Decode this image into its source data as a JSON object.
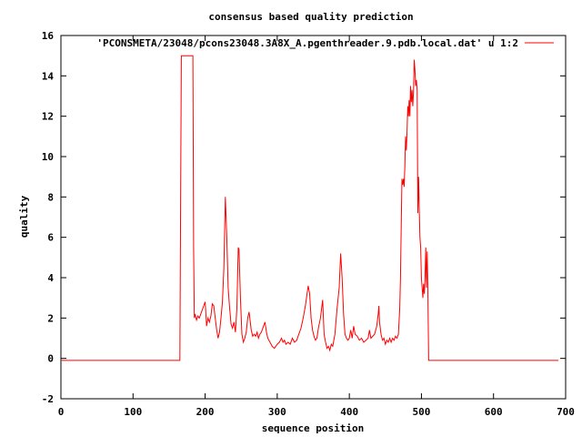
{
  "chart_data": {
    "type": "line",
    "title": "consensus based quality prediction",
    "xlabel": "sequence position",
    "ylabel": "quality",
    "xlim": [
      0,
      700
    ],
    "ylim": [
      -2,
      16
    ],
    "xticks": [
      0,
      100,
      200,
      300,
      400,
      500,
      600,
      700
    ],
    "yticks": [
      -2,
      0,
      2,
      4,
      6,
      8,
      10,
      12,
      14,
      16
    ],
    "grid": false,
    "legend_position": "top-right",
    "series": [
      {
        "name": "'PCONSMETA/23048/pcons23048.3A8X_A.pgenthreader.9.pdb.local.dat' u 1:2",
        "color": "#ff0000",
        "x": [
          1,
          165,
          166,
          167,
          183,
          184,
          185,
          186,
          188,
          190,
          192,
          195,
          198,
          200,
          202,
          204,
          206,
          208,
          210,
          212,
          214,
          216,
          218,
          220,
          222,
          224,
          226,
          228,
          230,
          232,
          234,
          236,
          238,
          240,
          242,
          244,
          246,
          247,
          249,
          251,
          253,
          255,
          257,
          259,
          261,
          264,
          266,
          268,
          270,
          272,
          274,
          276,
          278,
          280,
          283,
          285,
          287,
          290,
          293,
          296,
          300,
          303,
          306,
          308,
          310,
          312,
          315,
          318,
          321,
          324,
          327,
          330,
          333,
          336,
          339,
          343,
          345,
          347,
          349,
          351,
          353,
          355,
          357,
          360,
          363,
          365,
          367,
          369,
          371,
          373,
          375,
          377,
          380,
          383,
          386,
          388,
          390,
          392,
          394,
          396,
          398,
          400,
          402,
          404,
          406,
          408,
          411,
          414,
          417,
          420,
          423,
          426,
          428,
          430,
          435,
          438,
          440,
          441,
          442,
          444,
          446,
          448,
          450,
          452,
          454,
          456,
          458,
          460,
          462,
          464,
          466,
          468,
          470,
          471,
          472,
          473,
          474,
          475,
          476,
          477,
          478,
          479,
          480,
          481,
          482,
          483,
          484,
          485,
          486,
          487,
          488,
          489,
          490,
          491,
          492,
          493,
          494,
          495,
          496,
          497,
          498,
          499,
          500,
          501,
          502,
          503,
          504,
          505,
          506,
          507,
          508,
          509,
          510,
          690
        ],
        "y": [
          -0.1,
          -0.1,
          7.5,
          15,
          15,
          5.5,
          2.0,
          2.2,
          1.9,
          2.1,
          2.0,
          2.3,
          2.6,
          2.8,
          1.6,
          2.0,
          1.8,
          2.1,
          2.7,
          2.6,
          2.0,
          1.4,
          1.0,
          1.3,
          2.0,
          2.8,
          4.5,
          8.0,
          6.0,
          3.5,
          2.5,
          1.7,
          1.5,
          1.8,
          1.3,
          2.5,
          5.5,
          5.4,
          3.0,
          1.2,
          0.8,
          1.0,
          1.3,
          2.0,
          2.3,
          1.4,
          1.1,
          1.2,
          1.1,
          1.3,
          1.0,
          1.2,
          1.3,
          1.5,
          1.8,
          1.3,
          1.0,
          0.8,
          0.6,
          0.5,
          0.7,
          0.8,
          1.0,
          0.8,
          0.9,
          0.7,
          0.8,
          0.7,
          1.0,
          0.8,
          0.9,
          1.2,
          1.5,
          2.0,
          2.6,
          3.6,
          3.2,
          2.0,
          1.4,
          1.1,
          0.9,
          1.0,
          1.5,
          2.0,
          2.9,
          1.2,
          0.8,
          0.5,
          0.6,
          0.4,
          0.7,
          0.6,
          1.2,
          2.5,
          3.5,
          5.2,
          4.0,
          2.2,
          1.2,
          1.0,
          0.9,
          1.0,
          1.4,
          1.0,
          1.6,
          1.2,
          1.1,
          0.9,
          1.0,
          0.8,
          0.9,
          1.0,
          1.4,
          1.0,
          1.2,
          1.6,
          2.2,
          2.6,
          1.8,
          1.2,
          0.9,
          1.0,
          0.7,
          0.9,
          0.8,
          1.0,
          0.8,
          1.0,
          0.9,
          1.1,
          1.0,
          1.2,
          2.5,
          4.0,
          6.5,
          8.9,
          8.6,
          8.9,
          8.5,
          9.5,
          11.0,
          10.3,
          11.2,
          12.5,
          12.0,
          12.8,
          12.0,
          13.5,
          12.7,
          13.3,
          12.5,
          13.2,
          14.8,
          14.3,
          13.5,
          13.8,
          13.3,
          7.2,
          9.0,
          7.5,
          6.0,
          5.5,
          4.0,
          3.5,
          3.0,
          3.7,
          3.2,
          4.0,
          5.5,
          3.5,
          5.3,
          3.0,
          -0.1,
          -0.1
        ]
      }
    ]
  }
}
